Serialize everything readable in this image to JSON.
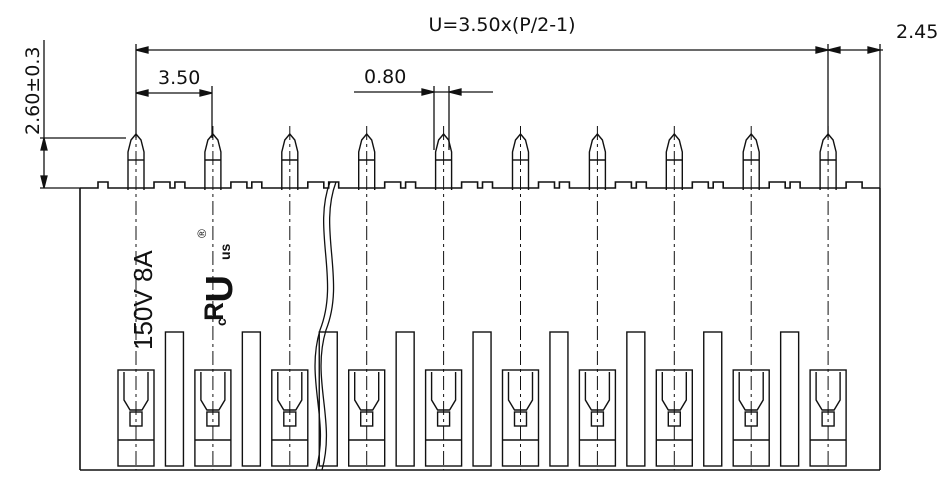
{
  "dimensions": {
    "overall_formula": "U=3.50x(P/2-1)",
    "edge_offset": "2.45",
    "pitch": "3.50",
    "pin_width": "0.80",
    "pin_height": "2.60±0.3"
  },
  "body": {
    "rating": "150V 8A",
    "cert_mark_main": "ᴿU",
    "cert_mark_c": "c",
    "cert_mark_us": "us",
    "cert_mark_r": "®"
  },
  "pin_count": 10,
  "colors": {
    "line": "#111111",
    "background": "#ffffff"
  }
}
